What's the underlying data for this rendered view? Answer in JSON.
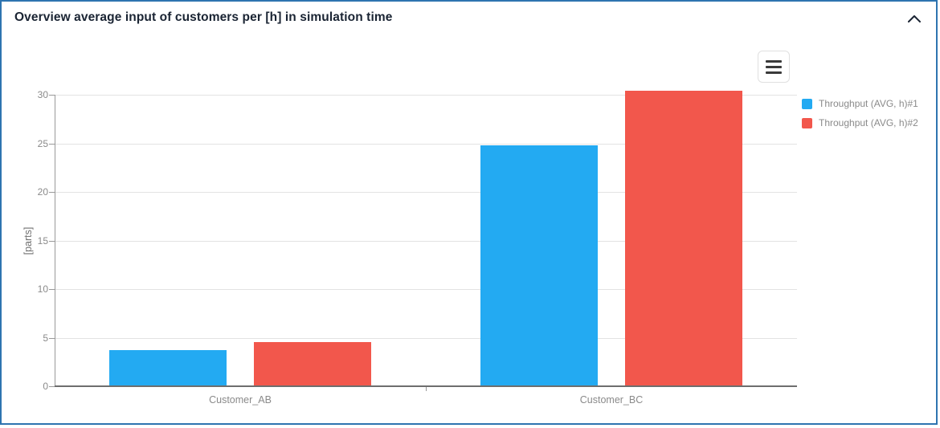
{
  "header": {
    "title": "Overview average input of customers per [h] in simulation time"
  },
  "chart_data": {
    "type": "bar",
    "title": "",
    "categories": [
      "Customer_AB",
      "Customer_BC"
    ],
    "series": [
      {
        "name": "Throughput (AVG, h)#1",
        "color": "#23aaf2",
        "values": [
          3.6,
          24.7
        ]
      },
      {
        "name": "Throughput (AVG, h)#2",
        "color": "#f2574c",
        "values": [
          4.5,
          30.3
        ]
      }
    ],
    "xlabel": "",
    "ylabel": "[parts]",
    "ylim": [
      0,
      30
    ],
    "yticks": [
      0,
      5,
      10,
      15,
      20,
      25,
      30
    ],
    "grid": true,
    "legend_position": "right"
  },
  "colors": {
    "card_border": "#2e74b0",
    "title_text": "#1a2433",
    "gridline": "#e3e3e3",
    "y_axis_line": "#999999",
    "x_axis_line": "#6e6e6e",
    "tick_text": "#8a8a8a",
    "axis_title_text": "#6f6f6f",
    "legend_text": "#8a8a8a"
  }
}
